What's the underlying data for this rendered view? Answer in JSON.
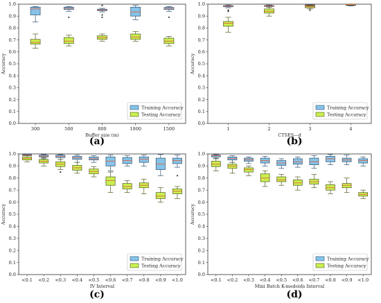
{
  "colors": {
    "training_fill": "#85c4e8",
    "training_edge": "#2f4f6f",
    "testing_fill": "#c9ef4e",
    "testing_edge": "#4f5a20",
    "median": "#e06040",
    "frame": "#333333"
  },
  "chart_data": [
    {
      "type": "box",
      "panel_label": "(a)",
      "xlabel": "Buffer size (m)",
      "ylabel": "Accuracy",
      "ylim": [
        0,
        1.0
      ],
      "yticks": [
        "0.0",
        "0.1",
        "0.2",
        "0.3",
        "0.4",
        "0.5",
        "0.6",
        "0.7",
        "0.8",
        "0.9",
        "1.0"
      ],
      "categories": [
        "300",
        "500",
        "800",
        "1000",
        "1500"
      ],
      "legend": [
        "Training Accuracy",
        "Testing Accuracy"
      ],
      "legend_position": "lower-right",
      "series": [
        {
          "name": "Training Accuracy",
          "boxes": [
            {
              "min": 0.85,
              "q1": 0.91,
              "med": 0.96,
              "q3": 0.975,
              "max": 0.98,
              "outliers": []
            },
            {
              "min": 0.94,
              "q1": 0.955,
              "med": 0.965,
              "q3": 0.975,
              "max": 0.98,
              "outliers": [
                0.89
              ]
            },
            {
              "min": 0.935,
              "q1": 0.945,
              "med": 0.952,
              "q3": 0.958,
              "max": 0.965,
              "outliers": [
                0.91,
                0.89,
                0.99
              ]
            },
            {
              "min": 0.87,
              "q1": 0.9,
              "med": 0.935,
              "q3": 0.975,
              "max": 0.99,
              "outliers": []
            },
            {
              "min": 0.94,
              "q1": 0.955,
              "med": 0.965,
              "q3": 0.973,
              "max": 0.98,
              "outliers": [
                0.89
              ]
            }
          ]
        },
        {
          "name": "Testing Accuracy",
          "boxes": [
            {
              "min": 0.63,
              "q1": 0.665,
              "med": 0.68,
              "q3": 0.705,
              "max": 0.75,
              "outliers": []
            },
            {
              "min": 0.65,
              "q1": 0.67,
              "med": 0.69,
              "q3": 0.72,
              "max": 0.74,
              "outliers": []
            },
            {
              "min": 0.69,
              "q1": 0.705,
              "med": 0.72,
              "q3": 0.735,
              "max": 0.75,
              "outliers": []
            },
            {
              "min": 0.69,
              "q1": 0.705,
              "med": 0.725,
              "q3": 0.75,
              "max": 0.77,
              "outliers": []
            },
            {
              "min": 0.65,
              "q1": 0.67,
              "med": 0.69,
              "q3": 0.715,
              "max": 0.73,
              "outliers": []
            }
          ]
        }
      ]
    },
    {
      "type": "box",
      "panel_label": "(b)",
      "xlabel": "CTSES—d",
      "ylabel": "Accuracy",
      "ylim": [
        0,
        1.0
      ],
      "yticks": [
        "0.0",
        "0.1",
        "0.2",
        "0.3",
        "0.4",
        "0.5",
        "0.6",
        "0.7",
        "0.8",
        "0.9",
        "1.0"
      ],
      "categories": [
        "1",
        "2",
        "3",
        "4"
      ],
      "legend": [
        "Training Accuracy",
        "Testing Accuracy"
      ],
      "legend_position": "lower-right",
      "series": [
        {
          "name": "Training Accuracy",
          "boxes": [
            {
              "min": 0.97,
              "q1": 0.978,
              "med": 0.984,
              "q3": 0.988,
              "max": 0.993,
              "outliers": [
                0.95,
                0.94
              ]
            },
            {
              "min": 0.975,
              "q1": 0.981,
              "med": 0.985,
              "q3": 0.989,
              "max": 0.993,
              "outliers": []
            },
            {
              "min": 0.985,
              "q1": 0.989,
              "med": 0.992,
              "q3": 0.995,
              "max": 0.998,
              "outliers": []
            },
            {
              "min": 0.985,
              "q1": 0.989,
              "med": 0.993,
              "q3": 0.996,
              "max": 0.998,
              "outliers": []
            }
          ]
        },
        {
          "name": "Testing Accuracy",
          "boxes": [
            {
              "min": 0.765,
              "q1": 0.815,
              "med": 0.84,
              "q3": 0.855,
              "max": 0.89,
              "outliers": []
            },
            {
              "min": 0.9,
              "q1": 0.925,
              "med": 0.94,
              "q3": 0.96,
              "max": 0.975,
              "outliers": []
            },
            {
              "min": 0.96,
              "q1": 0.97,
              "med": 0.978,
              "q3": 0.985,
              "max": 0.99,
              "outliers": [
                0.95
              ]
            },
            {
              "min": 0.993,
              "q1": 0.996,
              "med": 0.998,
              "q3": 0.999,
              "max": 1.0,
              "outliers": []
            }
          ]
        }
      ]
    },
    {
      "type": "box",
      "panel_label": "(c)",
      "xlabel": "IV Interval",
      "ylabel": "Accuracy",
      "ylim": [
        0,
        1.0
      ],
      "yticks": [
        "0.0",
        "0.1",
        "0.2",
        "0.3",
        "0.4",
        "0.5",
        "0.6",
        "0.7",
        "0.8",
        "0.9",
        "1.0"
      ],
      "categories": [
        "<0.1",
        "<0.2",
        "<0.3",
        "<0.4",
        "<0.5",
        "<0.6",
        "<0.7",
        "<0.8",
        "<0.9",
        "<1.0"
      ],
      "legend": [
        "Training Accuracy",
        "Testing Accuracy"
      ],
      "legend_position": "lower-right",
      "series": [
        {
          "name": "Training Accuracy",
          "boxes": [
            {
              "min": 0.975,
              "q1": 0.985,
              "med": 0.99,
              "q3": 0.995,
              "max": 1.0,
              "outliers": []
            },
            {
              "min": 0.96,
              "q1": 0.975,
              "med": 0.982,
              "q3": 0.99,
              "max": 0.995,
              "outliers": []
            },
            {
              "min": 0.955,
              "q1": 0.97,
              "med": 0.98,
              "q3": 0.99,
              "max": 0.995,
              "outliers": []
            },
            {
              "min": 0.93,
              "q1": 0.955,
              "med": 0.968,
              "q3": 0.98,
              "max": 0.99,
              "outliers": []
            },
            {
              "min": 0.93,
              "q1": 0.95,
              "med": 0.96,
              "q3": 0.975,
              "max": 0.985,
              "outliers": []
            },
            {
              "min": 0.86,
              "q1": 0.9,
              "med": 0.94,
              "q3": 0.975,
              "max": 0.99,
              "outliers": []
            },
            {
              "min": 0.9,
              "q1": 0.92,
              "med": 0.945,
              "q3": 0.97,
              "max": 0.985,
              "outliers": []
            },
            {
              "min": 0.9,
              "q1": 0.93,
              "med": 0.955,
              "q3": 0.975,
              "max": 0.99,
              "outliers": []
            },
            {
              "min": 0.82,
              "q1": 0.87,
              "med": 0.915,
              "q3": 0.965,
              "max": 0.995,
              "outliers": []
            },
            {
              "min": 0.89,
              "q1": 0.92,
              "med": 0.945,
              "q3": 0.965,
              "max": 0.99,
              "outliers": [
                0.82
              ]
            }
          ]
        },
        {
          "name": "Testing Accuracy",
          "boxes": [
            {
              "min": 0.935,
              "q1": 0.95,
              "med": 0.963,
              "q3": 0.975,
              "max": 0.985,
              "outliers": []
            },
            {
              "min": 0.9,
              "q1": 0.925,
              "med": 0.94,
              "q3": 0.955,
              "max": 0.97,
              "outliers": []
            },
            {
              "min": 0.87,
              "q1": 0.895,
              "med": 0.915,
              "q3": 0.935,
              "max": 0.955,
              "outliers": [
                0.85
              ]
            },
            {
              "min": 0.84,
              "q1": 0.865,
              "med": 0.885,
              "q3": 0.905,
              "max": 0.93,
              "outliers": []
            },
            {
              "min": 0.81,
              "q1": 0.835,
              "med": 0.855,
              "q3": 0.875,
              "max": 0.895,
              "outliers": []
            },
            {
              "min": 0.68,
              "q1": 0.74,
              "med": 0.78,
              "q3": 0.81,
              "max": 0.85,
              "outliers": []
            },
            {
              "min": 0.68,
              "q1": 0.71,
              "med": 0.73,
              "q3": 0.755,
              "max": 0.78,
              "outliers": []
            },
            {
              "min": 0.67,
              "q1": 0.72,
              "med": 0.74,
              "q3": 0.76,
              "max": 0.79,
              "outliers": []
            },
            {
              "min": 0.6,
              "q1": 0.63,
              "med": 0.65,
              "q3": 0.68,
              "max": 0.72,
              "outliers": []
            },
            {
              "min": 0.63,
              "q1": 0.67,
              "med": 0.69,
              "q3": 0.71,
              "max": 0.73,
              "outliers": []
            }
          ]
        }
      ]
    },
    {
      "type": "box",
      "panel_label": "(d)",
      "xlabel": "Mini Batch K-medoids Interval",
      "ylabel": "Accuracy",
      "ylim": [
        0,
        1.0
      ],
      "yticks": [
        "0.0",
        "0.1",
        "0.2",
        "0.3",
        "0.4",
        "0.5",
        "0.6",
        "0.7",
        "0.8",
        "0.9",
        "1.0"
      ],
      "categories": [
        "<0.1",
        "<0.2",
        "<0.3",
        "<0.4",
        "<0.5",
        "<0.6",
        "<0.7",
        "<0.8",
        "<0.9",
        "<1.0"
      ],
      "legend": [
        "Training Accuracy",
        "Testing Accuracy"
      ],
      "legend_position": "lower-right",
      "series": [
        {
          "name": "Training Accuracy",
          "boxes": [
            {
              "min": 0.965,
              "q1": 0.975,
              "med": 0.985,
              "q3": 0.99,
              "max": 0.995,
              "outliers": []
            },
            {
              "min": 0.93,
              "q1": 0.95,
              "med": 0.963,
              "q3": 0.975,
              "max": 0.985,
              "outliers": []
            },
            {
              "min": 0.92,
              "q1": 0.94,
              "med": 0.952,
              "q3": 0.965,
              "max": 0.975,
              "outliers": []
            },
            {
              "min": 0.9,
              "q1": 0.925,
              "med": 0.945,
              "q3": 0.965,
              "max": 0.98,
              "outliers": []
            },
            {
              "min": 0.88,
              "q1": 0.905,
              "med": 0.925,
              "q3": 0.945,
              "max": 0.96,
              "outliers": []
            },
            {
              "min": 0.89,
              "q1": 0.915,
              "med": 0.935,
              "q3": 0.96,
              "max": 0.975,
              "outliers": []
            },
            {
              "min": 0.88,
              "q1": 0.91,
              "med": 0.935,
              "q3": 0.965,
              "max": 0.985,
              "outliers": []
            },
            {
              "min": 0.91,
              "q1": 0.935,
              "med": 0.96,
              "q3": 0.98,
              "max": 0.995,
              "outliers": []
            },
            {
              "min": 0.91,
              "q1": 0.935,
              "med": 0.95,
              "q3": 0.965,
              "max": 0.99,
              "outliers": []
            },
            {
              "min": 0.9,
              "q1": 0.925,
              "med": 0.945,
              "q3": 0.96,
              "max": 0.975,
              "outliers": []
            }
          ]
        },
        {
          "name": "Testing Accuracy",
          "boxes": [
            {
              "min": 0.86,
              "q1": 0.895,
              "med": 0.915,
              "q3": 0.94,
              "max": 0.96,
              "outliers": []
            },
            {
              "min": 0.84,
              "q1": 0.88,
              "med": 0.9,
              "q3": 0.915,
              "max": 0.93,
              "outliers": []
            },
            {
              "min": 0.82,
              "q1": 0.85,
              "med": 0.87,
              "q3": 0.885,
              "max": 0.9,
              "outliers": []
            },
            {
              "min": 0.73,
              "q1": 0.77,
              "med": 0.8,
              "q3": 0.835,
              "max": 0.86,
              "outliers": []
            },
            {
              "min": 0.74,
              "q1": 0.77,
              "med": 0.785,
              "q3": 0.81,
              "max": 0.83,
              "outliers": []
            },
            {
              "min": 0.7,
              "q1": 0.74,
              "med": 0.76,
              "q3": 0.785,
              "max": 0.81,
              "outliers": []
            },
            {
              "min": 0.72,
              "q1": 0.75,
              "med": 0.77,
              "q3": 0.79,
              "max": 0.83,
              "outliers": []
            },
            {
              "min": 0.67,
              "q1": 0.7,
              "med": 0.72,
              "q3": 0.745,
              "max": 0.77,
              "outliers": []
            },
            {
              "min": 0.68,
              "q1": 0.72,
              "med": 0.74,
              "q3": 0.755,
              "max": 0.8,
              "outliers": []
            },
            {
              "min": 0.63,
              "q1": 0.65,
              "med": 0.665,
              "q3": 0.68,
              "max": 0.7,
              "outliers": []
            }
          ]
        }
      ]
    }
  ]
}
